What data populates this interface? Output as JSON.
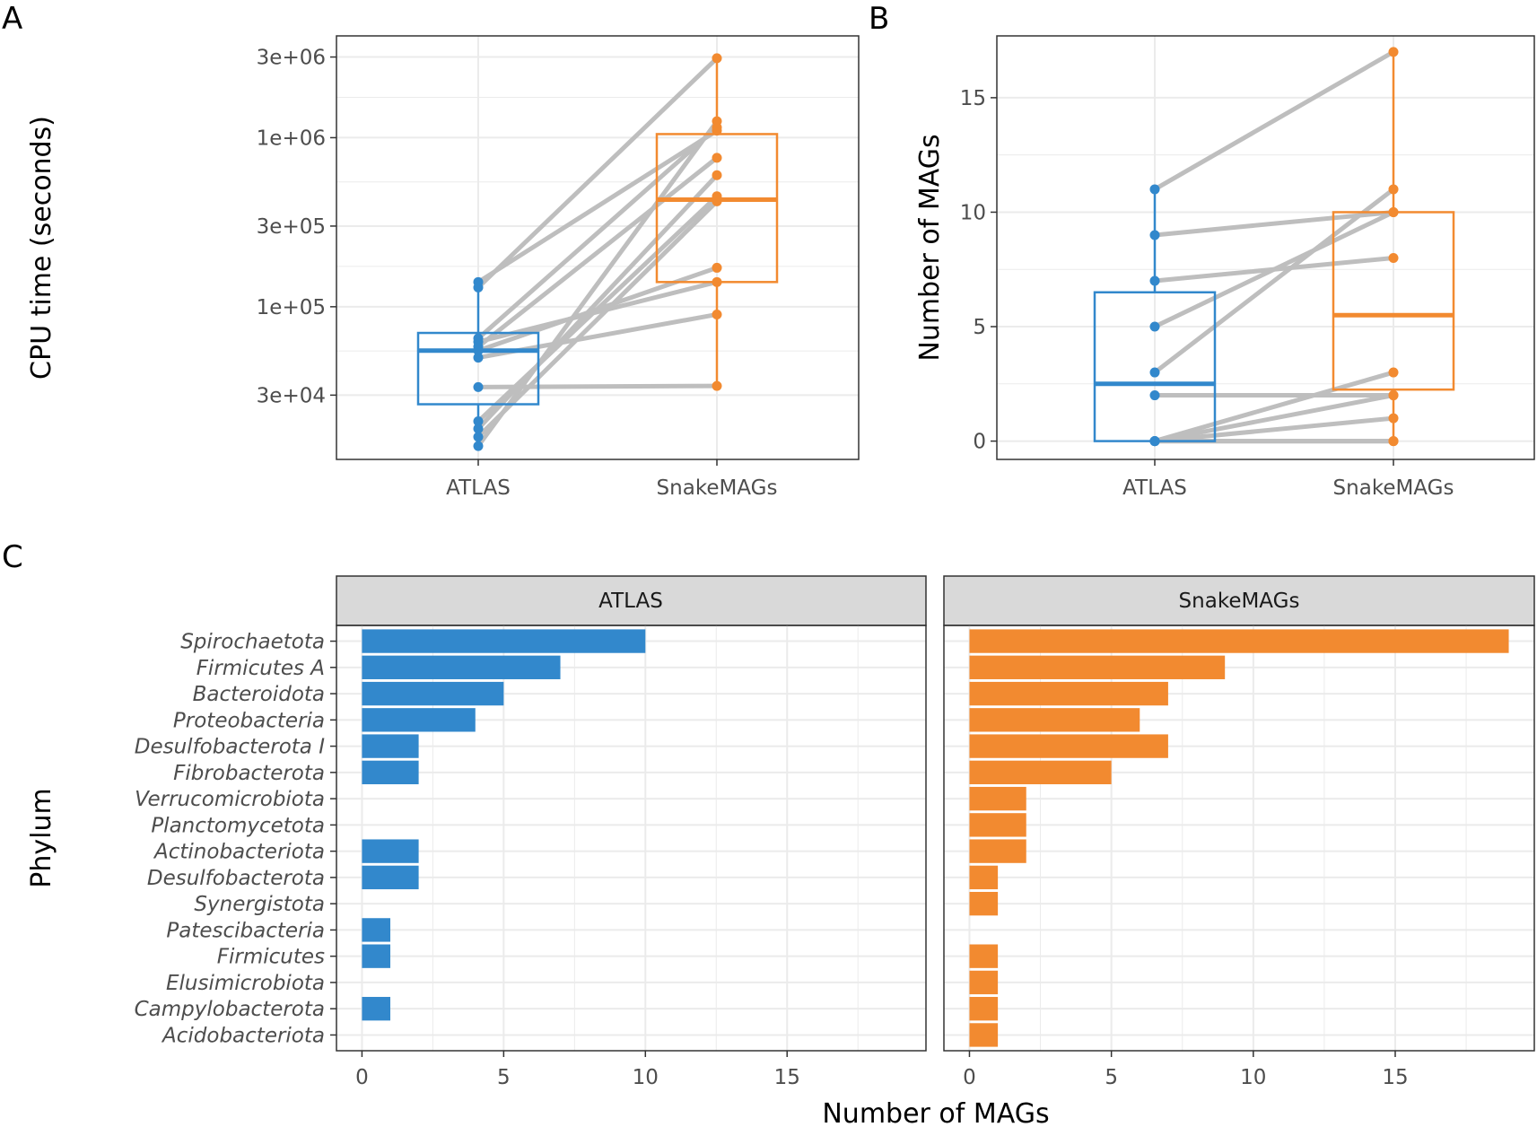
{
  "colors": {
    "atlas": "#3288CC",
    "snakemags": "#F28A30",
    "pairs": "#BEBEBE",
    "grid": "#EBEBEB",
    "strip": "#D9D9D9"
  },
  "panel_letters": {
    "a": "A",
    "b": "B",
    "c": "C"
  },
  "chart_data": [
    {
      "panel": "A",
      "type": "box+paired-scatter",
      "ylabel": "CPU time (seconds)",
      "yscale": "log10",
      "ylim": [
        12500,
        4000000
      ],
      "y_ticks": [
        30000,
        100000,
        300000,
        1000000,
        3000000
      ],
      "y_tick_labels": [
        "3e+04",
        "1e+05",
        "3e+05",
        "1e+06",
        "3e+06"
      ],
      "categories": [
        "ATLAS",
        "SnakeMAGs"
      ],
      "box_stats": [
        {
          "q1": 26500,
          "median": 55000,
          "q3": 70000,
          "min": 15000,
          "max": 140000
        },
        {
          "q1": 140000,
          "median": 430000,
          "q3": 1050000,
          "min": 33500,
          "max": 2950000
        }
      ],
      "pairs": [
        [
          15000,
          1250000
        ],
        [
          17000,
          420000
        ],
        [
          19000,
          600000
        ],
        [
          21000,
          450000
        ],
        [
          33500,
          34000
        ],
        [
          50000,
          90000
        ],
        [
          55000,
          170000
        ],
        [
          58000,
          760000
        ],
        [
          62000,
          140000
        ],
        [
          65000,
          1150000
        ],
        [
          130000,
          2950000
        ],
        [
          140000,
          1100000
        ]
      ]
    },
    {
      "panel": "B",
      "type": "box+paired-scatter",
      "ylabel": "Number of MAGs",
      "ylim": [
        -0.8,
        17.7
      ],
      "y_ticks": [
        0,
        5,
        10,
        15
      ],
      "categories": [
        "ATLAS",
        "SnakeMAGs"
      ],
      "box_stats": [
        {
          "q1": 0,
          "median": 2.5,
          "q3": 6.5,
          "min": 0,
          "max": 11
        },
        {
          "q1": 2.25,
          "median": 5.5,
          "q3": 10,
          "min": 0,
          "max": 17
        }
      ],
      "pairs": [
        [
          11,
          17
        ],
        [
          9,
          10
        ],
        [
          7,
          8
        ],
        [
          5,
          10
        ],
        [
          3,
          11
        ],
        [
          2,
          2
        ],
        [
          0,
          3
        ],
        [
          0,
          1
        ],
        [
          0,
          0
        ],
        [
          0,
          0
        ],
        [
          0,
          2
        ],
        [
          0,
          0
        ]
      ]
    },
    {
      "panel": "C",
      "type": "bar",
      "orientation": "horizontal",
      "xlabel": "Number of MAGs",
      "ylabel": "Phylum",
      "xlim": [
        -0.9,
        19.9
      ],
      "x_ticks": [
        0,
        5,
        10,
        15
      ],
      "categories": [
        "Spirochaetota",
        "Firmicutes A",
        "Bacteroidota",
        "Proteobacteria",
        "Desulfobacterota I",
        "Fibrobacterota",
        "Verrucomicrobiota",
        "Planctomycetota",
        "Actinobacteriota",
        "Desulfobacterota",
        "Synergistota",
        "Patescibacteria",
        "Firmicutes",
        "Elusimicrobiota",
        "Campylobacterota",
        "Acidobacteriota"
      ],
      "series": [
        {
          "name": "ATLAS",
          "values": [
            10,
            7,
            5,
            4,
            2,
            2,
            0,
            0,
            2,
            2,
            0,
            1,
            1,
            0,
            1,
            0
          ]
        },
        {
          "name": "SnakeMAGs",
          "values": [
            19,
            9,
            7,
            6,
            7,
            5,
            2,
            2,
            2,
            1,
            1,
            0,
            1,
            1,
            1,
            1
          ]
        }
      ]
    }
  ]
}
